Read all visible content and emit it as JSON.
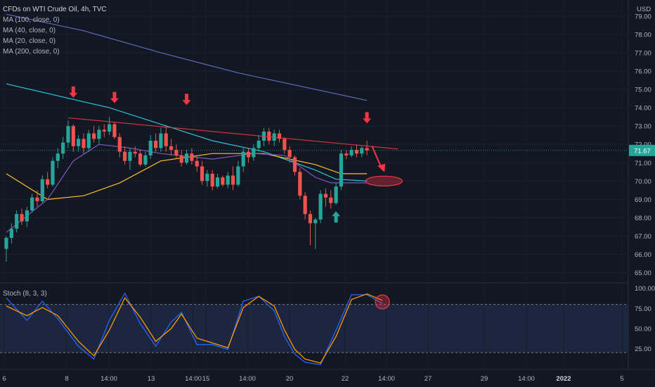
{
  "header": {
    "title": "CFDs on WTI Crude Oil, 4h, TVC",
    "indicators": [
      "MA (100, close, 0)",
      "MA (40, close, 0)",
      "MA (20, close, 0)",
      "MA (200, close, 0)"
    ],
    "stoch_label": "Stoch (8, 3, 3)",
    "currency": "USD"
  },
  "colors": {
    "background": "#131722",
    "up": "#26a69a",
    "down": "#ef5350",
    "ma100": "#26c6da",
    "ma40": "#fbc02d",
    "ma20": "#7e57c2",
    "ma200": "#5c6bc0",
    "stoch_k": "#2962ff",
    "stoch_d": "#ff9800",
    "annotation": "#f23645"
  },
  "chart_data": [
    {
      "type": "candlestick",
      "title": "CFDs on WTI Crude Oil, 4h, TVC",
      "y_ticks": [
        65.0,
        66.0,
        67.0,
        68.0,
        69.0,
        70.0,
        71.0,
        72.0,
        73.0,
        74.0,
        75.0,
        76.0,
        77.0,
        78.0,
        79.0
      ],
      "ylim": [
        64.6,
        79.8
      ],
      "x_labels": [
        "6",
        "8",
        "14:00",
        "13",
        "14:00",
        "15",
        "14:00",
        "20",
        "22",
        "14:00",
        "27",
        "29",
        "14:00",
        "2022",
        "5"
      ],
      "last_price": "71.67",
      "ohlc": [
        [
          66.3,
          67.0,
          65.6,
          66.9
        ],
        [
          66.9,
          67.7,
          66.6,
          67.4
        ],
        [
          67.4,
          68.4,
          67.2,
          68.2
        ],
        [
          68.2,
          68.5,
          67.6,
          67.8
        ],
        [
          67.8,
          68.6,
          67.5,
          68.4
        ],
        [
          68.4,
          69.3,
          68.3,
          69.1
        ],
        [
          69.1,
          69.5,
          68.6,
          68.9
        ],
        [
          68.9,
          70.3,
          68.8,
          70.1
        ],
        [
          70.1,
          70.5,
          69.6,
          69.8
        ],
        [
          69.8,
          71.3,
          69.7,
          71.1
        ],
        [
          71.1,
          71.8,
          70.7,
          71.5
        ],
        [
          71.5,
          72.4,
          71.2,
          72.1
        ],
        [
          72.1,
          73.3,
          71.8,
          73.0
        ],
        [
          73.0,
          73.1,
          71.6,
          71.9
        ],
        [
          71.9,
          72.5,
          71.6,
          72.3
        ],
        [
          72.3,
          72.6,
          71.5,
          71.8
        ],
        [
          71.8,
          72.8,
          71.6,
          72.6
        ],
        [
          72.6,
          73.0,
          72.1,
          72.3
        ],
        [
          72.3,
          73.0,
          72.0,
          72.8
        ],
        [
          72.8,
          73.1,
          72.4,
          72.7
        ],
        [
          72.7,
          73.5,
          72.5,
          73.1
        ],
        [
          73.1,
          73.2,
          72.3,
          72.4
        ],
        [
          72.4,
          72.6,
          71.3,
          71.6
        ],
        [
          71.6,
          71.9,
          70.9,
          71.1
        ],
        [
          71.1,
          71.8,
          70.6,
          71.6
        ],
        [
          71.6,
          71.9,
          71.3,
          71.5
        ],
        [
          71.5,
          71.7,
          70.8,
          70.9
        ],
        [
          70.9,
          71.6,
          70.8,
          71.4
        ],
        [
          71.4,
          72.5,
          71.2,
          72.2
        ],
        [
          72.2,
          72.6,
          71.6,
          71.8
        ],
        [
          71.8,
          72.9,
          71.6,
          72.6
        ],
        [
          72.6,
          73.0,
          71.6,
          71.9
        ],
        [
          71.9,
          72.3,
          71.4,
          71.7
        ],
        [
          71.7,
          72.0,
          71.2,
          71.4
        ],
        [
          71.4,
          71.7,
          70.8,
          71.0
        ],
        [
          71.0,
          71.7,
          70.9,
          71.5
        ],
        [
          71.5,
          71.8,
          70.9,
          71.1
        ],
        [
          71.1,
          71.4,
          70.5,
          70.8
        ],
        [
          70.8,
          71.1,
          69.8,
          70.0
        ],
        [
          70.0,
          70.6,
          69.7,
          70.4
        ],
        [
          70.4,
          70.6,
          69.5,
          69.7
        ],
        [
          69.7,
          70.4,
          69.6,
          70.2
        ],
        [
          70.2,
          70.3,
          69.7,
          69.8
        ],
        [
          69.8,
          70.5,
          69.6,
          70.3
        ],
        [
          70.3,
          70.8,
          69.5,
          69.8
        ],
        [
          69.8,
          71.1,
          69.7,
          70.8
        ],
        [
          70.8,
          71.8,
          70.5,
          71.6
        ],
        [
          71.6,
          71.8,
          71.0,
          71.3
        ],
        [
          71.3,
          72.0,
          71.1,
          71.8
        ],
        [
          71.8,
          72.5,
          71.6,
          72.2
        ],
        [
          72.2,
          72.9,
          71.9,
          72.7
        ],
        [
          72.7,
          72.9,
          72.0,
          72.2
        ],
        [
          72.2,
          72.8,
          71.9,
          72.6
        ],
        [
          72.6,
          72.8,
          72.1,
          72.3
        ],
        [
          72.3,
          72.4,
          71.5,
          71.7
        ],
        [
          71.7,
          71.9,
          71.0,
          71.3
        ],
        [
          71.3,
          71.4,
          70.3,
          70.5
        ],
        [
          70.5,
          70.7,
          69.0,
          69.2
        ],
        [
          69.2,
          69.4,
          67.9,
          68.2
        ],
        [
          68.2,
          68.4,
          66.5,
          67.7
        ],
        [
          67.7,
          68.0,
          66.3,
          67.9
        ],
        [
          67.9,
          69.5,
          67.7,
          69.3
        ],
        [
          69.3,
          69.6,
          68.6,
          69.1
        ],
        [
          69.1,
          69.5,
          68.5,
          68.8
        ],
        [
          68.8,
          69.9,
          68.7,
          69.7
        ],
        [
          69.7,
          71.7,
          69.5,
          71.5
        ],
        [
          71.5,
          71.7,
          71.2,
          71.4
        ],
        [
          71.4,
          71.9,
          71.3,
          71.7
        ],
        [
          71.7,
          72.0,
          71.3,
          71.5
        ],
        [
          71.5,
          71.9,
          71.3,
          71.8
        ],
        [
          71.8,
          72.2,
          71.4,
          71.67
        ]
      ],
      "ma_lines": [
        {
          "name": "MA (100, close, 0)",
          "points": [
            [
              0,
              75.3
            ],
            [
              20,
              74.0
            ],
            [
              30,
              73.1
            ],
            [
              40,
              72.2
            ],
            [
              50,
              71.6
            ],
            [
              60,
              70.6
            ],
            [
              64,
              70.1
            ],
            [
              70,
              70.0
            ]
          ]
        },
        {
          "name": "MA (40, close, 0)",
          "points": [
            [
              0,
              70.4
            ],
            [
              8,
              69.0
            ],
            [
              15,
              69.2
            ],
            [
              22,
              69.9
            ],
            [
              30,
              71.1
            ],
            [
              40,
              71.5
            ],
            [
              50,
              71.5
            ],
            [
              60,
              70.9
            ],
            [
              65,
              70.4
            ],
            [
              70,
              70.4
            ]
          ]
        },
        {
          "name": "MA (20, close, 0)",
          "points": [
            [
              0,
              67.2
            ],
            [
              8,
              69.0
            ],
            [
              13,
              71.1
            ],
            [
              18,
              72.0
            ],
            [
              24,
              71.8
            ],
            [
              30,
              71.5
            ],
            [
              40,
              71.2
            ],
            [
              48,
              71.5
            ],
            [
              54,
              71.4
            ],
            [
              60,
              70.2
            ],
            [
              63,
              69.9
            ],
            [
              70,
              69.9
            ]
          ]
        },
        {
          "name": "MA (200, close, 0)",
          "points": [
            [
              0,
              79.1
            ],
            [
              15,
              78.2
            ],
            [
              30,
              77.0
            ],
            [
              45,
              75.9
            ],
            [
              60,
              75.0
            ],
            [
              70,
              74.4
            ]
          ]
        }
      ],
      "annotations": {
        "down_arrows": [
          {
            "index": 13,
            "price": 74.7
          },
          {
            "index": 21,
            "price": 74.4
          },
          {
            "index": 35,
            "price": 74.3
          },
          {
            "index": 70,
            "price": 73.3
          }
        ],
        "up_arrows": [
          {
            "index": 64,
            "price": 68.2
          }
        ],
        "resistance_line": [
          [
            12,
            73.45
          ],
          [
            76,
            71.75
          ]
        ],
        "projection_arrow": [
          [
            71,
            71.9
          ],
          [
            73,
            70.6
          ]
        ],
        "target_ellipse": {
          "index": 73.3,
          "price": 70.0
        }
      }
    },
    {
      "type": "line",
      "title": "Stoch (8, 3, 3)",
      "y_ticks": [
        25.0,
        50.0,
        75.0,
        100.0
      ],
      "ylim": [
        0,
        105
      ],
      "band": [
        20,
        80
      ],
      "series": [
        {
          "name": "%K",
          "points": [
            [
              0,
              88
            ],
            [
              4,
              60
            ],
            [
              7,
              84
            ],
            [
              10,
              62
            ],
            [
              14,
              28
            ],
            [
              17,
              12
            ],
            [
              20,
              60
            ],
            [
              23,
              94
            ],
            [
              26,
              56
            ],
            [
              29,
              28
            ],
            [
              32,
              58
            ],
            [
              34,
              70
            ],
            [
              37,
              30
            ],
            [
              40,
              30
            ],
            [
              43,
              24
            ],
            [
              46,
              84
            ],
            [
              49,
              90
            ],
            [
              52,
              72
            ],
            [
              54,
              40
            ],
            [
              56,
              18
            ],
            [
              58,
              8
            ],
            [
              61,
              5
            ],
            [
              64,
              48
            ],
            [
              67,
              92
            ],
            [
              70,
              92
            ],
            [
              73,
              81
            ]
          ]
        },
        {
          "name": "%D",
          "points": [
            [
              0,
              78
            ],
            [
              4,
              66
            ],
            [
              7,
              76
            ],
            [
              10,
              66
            ],
            [
              14,
              34
            ],
            [
              17,
              16
            ],
            [
              20,
              48
            ],
            [
              23,
              88
            ],
            [
              26,
              64
            ],
            [
              29,
              34
            ],
            [
              32,
              50
            ],
            [
              34,
              68
            ],
            [
              37,
              38
            ],
            [
              40,
              32
            ],
            [
              43,
              26
            ],
            [
              46,
              76
            ],
            [
              49,
              90
            ],
            [
              52,
              78
            ],
            [
              54,
              48
            ],
            [
              56,
              24
            ],
            [
              58,
              12
            ],
            [
              61,
              7
            ],
            [
              64,
              40
            ],
            [
              67,
              86
            ],
            [
              70,
              93
            ],
            [
              73,
              85
            ]
          ]
        }
      ],
      "marker": {
        "index": 73,
        "value": 83
      }
    }
  ]
}
